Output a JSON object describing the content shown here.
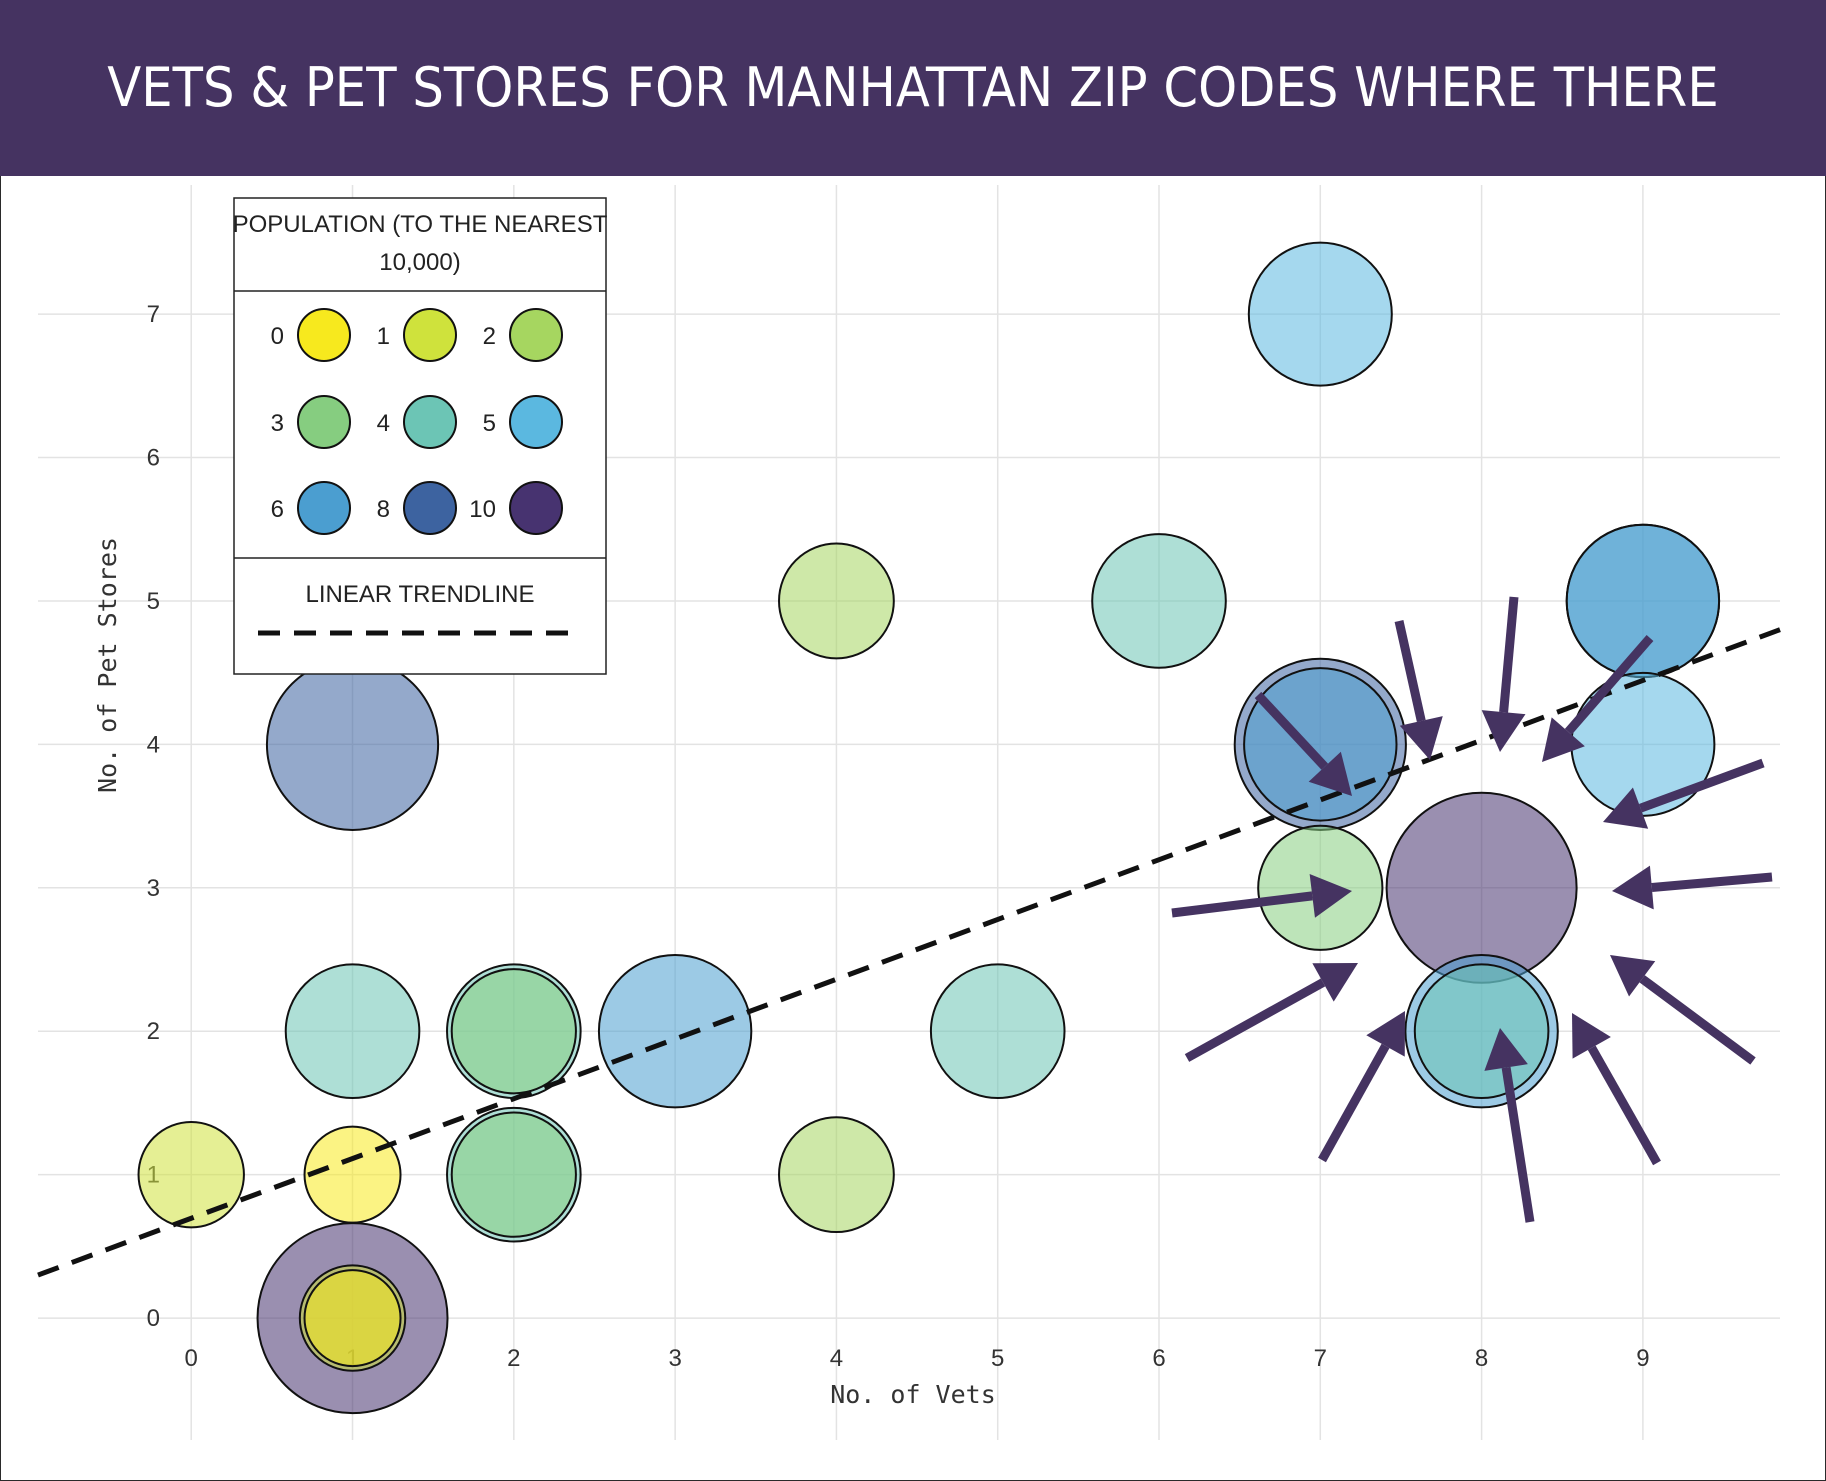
{
  "chart_data": {
    "type": "scatter",
    "title": "VETS & PET STORES FOR MANHATTAN ZIP CODES WHERE THERE ARE VETS",
    "xlabel": "No. of Vets",
    "ylabel": "No. of Pet Stores",
    "xlim": [
      -0.95,
      9.85
    ],
    "ylim": [
      -0.85,
      7.9
    ],
    "xticks": [
      0,
      1,
      2,
      3,
      4,
      5,
      6,
      7,
      8,
      9
    ],
    "yticks": [
      0,
      1,
      2,
      3,
      4,
      5,
      6,
      7
    ],
    "grid": true,
    "legend": {
      "title": "POPULATION (TO THE NEAREST 10,000)",
      "placement": "top-left",
      "population_levels": [
        {
          "label": "0",
          "color": "#f7e91e"
        },
        {
          "label": "1",
          "color": "#cfe23c"
        },
        {
          "label": "2",
          "color": "#a6d660"
        },
        {
          "label": "3",
          "color": "#86cd80"
        },
        {
          "label": "4",
          "color": "#6cc5b5"
        },
        {
          "label": "5",
          "color": "#5bb8e0"
        },
        {
          "label": "6",
          "color": "#4b9ed0"
        },
        {
          "label": "8",
          "color": "#3d63a0"
        },
        {
          "label": "10",
          "color": "#473370"
        }
      ],
      "trendline_label": "LINEAR TRENDLINE"
    },
    "points": [
      {
        "vets": 0,
        "pet_stores": 1,
        "population": 1
      },
      {
        "vets": 1,
        "pet_stores": 4,
        "population": 8
      },
      {
        "vets": 1,
        "pet_stores": 2,
        "population": 4
      },
      {
        "vets": 1,
        "pet_stores": 1,
        "population": 0
      },
      {
        "vets": 1,
        "pet_stores": 0,
        "population": 0
      },
      {
        "vets": 1,
        "pet_stores": 0,
        "population": 1
      },
      {
        "vets": 1,
        "pet_stores": 0,
        "population": 10
      },
      {
        "vets": 2,
        "pet_stores": 2,
        "population": 3
      },
      {
        "vets": 2,
        "pet_stores": 2,
        "population": 4
      },
      {
        "vets": 2,
        "pet_stores": 1,
        "population": 3
      },
      {
        "vets": 2,
        "pet_stores": 1,
        "population": 4
      },
      {
        "vets": 3,
        "pet_stores": 2,
        "population": 6
      },
      {
        "vets": 4,
        "pet_stores": 5,
        "population": 2
      },
      {
        "vets": 4,
        "pet_stores": 1,
        "population": 2
      },
      {
        "vets": 5,
        "pet_stores": 2,
        "population": 4
      },
      {
        "vets": 6,
        "pet_stores": 5,
        "population": 4
      },
      {
        "vets": 7,
        "pet_stores": 7,
        "population": 5
      },
      {
        "vets": 7,
        "pet_stores": 4,
        "population": 6
      },
      {
        "vets": 7,
        "pet_stores": 4,
        "population": 8
      },
      {
        "vets": 7,
        "pet_stores": 3,
        "population": 3
      },
      {
        "vets": 8,
        "pet_stores": 3,
        "population": 10
      },
      {
        "vets": 8,
        "pet_stores": 2,
        "population": 6
      },
      {
        "vets": 8,
        "pet_stores": 2,
        "population": 4
      },
      {
        "vets": 9,
        "pet_stores": 5,
        "population": 6
      },
      {
        "vets": 9,
        "pet_stores": 5,
        "population": 6
      },
      {
        "vets": 9,
        "pet_stores": 4,
        "population": 5
      }
    ],
    "trendline": {
      "start": [
        -0.95,
        0.3
      ],
      "end": [
        9.85,
        4.8
      ]
    },
    "annotation_arrows": [
      {
        "from": [
          7.35,
          3.8
        ],
        "to": [
          7.9,
          3.78
        ],
        "color": "#453361"
      }
    ]
  }
}
